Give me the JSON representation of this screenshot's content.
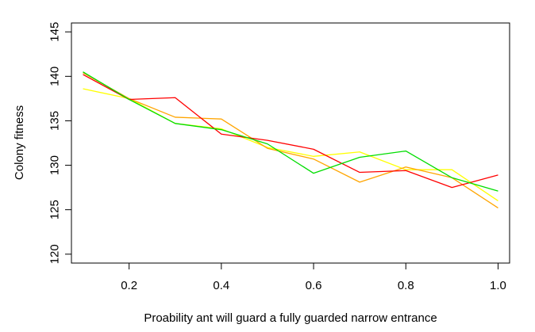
{
  "chart_data": {
    "type": "line",
    "xlabel": "Proability ant will guard a fully guarded narrow entrance",
    "ylabel": "Colony fitness",
    "xlim": [
      0.075,
      1.025
    ],
    "ylim": [
      119,
      146
    ],
    "x_ticks": [
      0.2,
      0.4,
      0.6,
      0.8,
      1.0
    ],
    "x_tick_labels": [
      "0.2",
      "0.4",
      "0.6",
      "0.8",
      "1.0"
    ],
    "y_ticks": [
      120,
      125,
      130,
      135,
      140,
      145
    ],
    "y_tick_labels": [
      "120",
      "125",
      "130",
      "135",
      "140",
      "145"
    ],
    "grid": false,
    "legend": "none",
    "x": [
      0.1,
      0.2,
      0.3,
      0.4,
      0.5,
      0.6,
      0.7,
      0.8,
      0.9,
      1.0
    ],
    "series": [
      {
        "color": "#ffff00",
        "values": [
          138.6,
          137.5,
          134.7,
          134.1,
          132.0,
          131.0,
          131.5,
          129.5,
          129.5,
          126.0
        ]
      },
      {
        "color": "#ffa500",
        "values": [
          140.4,
          137.5,
          135.4,
          135.2,
          131.9,
          130.7,
          128.1,
          129.8,
          128.6,
          125.2
        ]
      },
      {
        "color": "#ff0000",
        "values": [
          140.2,
          137.4,
          137.6,
          133.5,
          132.8,
          131.8,
          129.2,
          129.4,
          127.5,
          128.9
        ]
      },
      {
        "color": "#00dd00",
        "values": [
          140.5,
          137.4,
          134.7,
          134.0,
          132.4,
          129.1,
          130.9,
          131.6,
          128.6,
          127.1
        ]
      }
    ]
  }
}
